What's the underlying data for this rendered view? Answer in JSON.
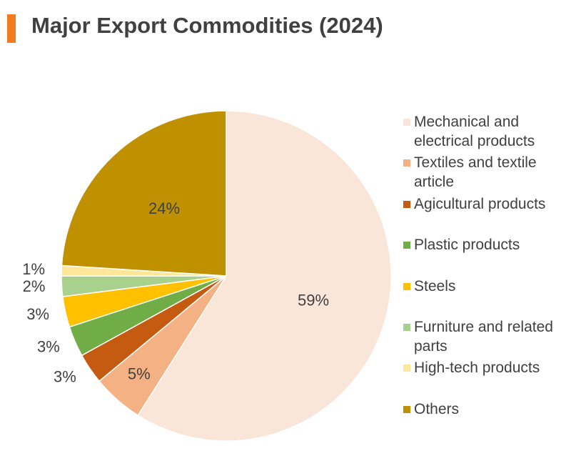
{
  "chart_data": {
    "type": "pie",
    "title": "Major Export Commodities (2024)",
    "categories": [
      "Mechanical and electrical products",
      "Textiles and textile article",
      "Agicultural products",
      "Plastic products",
      "Steels",
      "Furniture and related parts",
      "High-tech products",
      "Others"
    ],
    "values": [
      59,
      5,
      3,
      3,
      3,
      2,
      1,
      24
    ],
    "value_labels": [
      "59%",
      "5%",
      "3%",
      "3%",
      "3%",
      "2%",
      "1%",
      "24%"
    ],
    "colors": [
      "#fae5d9",
      "#f4b183",
      "#c55a11",
      "#70ad47",
      "#ffc000",
      "#a9d18e",
      "#ffe699",
      "#bf9000"
    ],
    "legend": "right"
  }
}
